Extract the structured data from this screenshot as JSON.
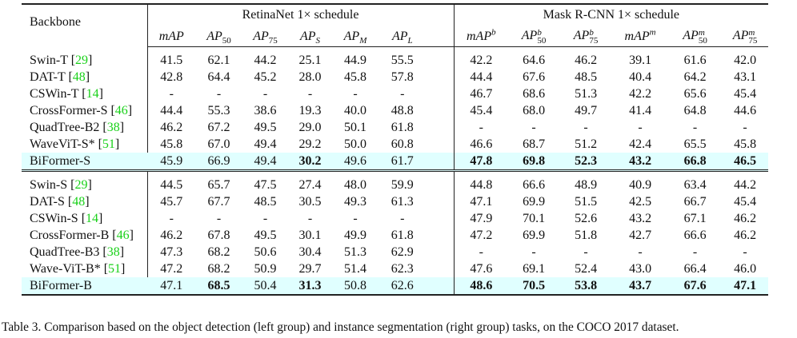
{
  "table": {
    "backbone_header": "Backbone",
    "groups": [
      "RetinaNet 1× schedule",
      "Mask R-CNN 1× schedule"
    ],
    "columns": [
      {
        "base": "mAP",
        "sub": "",
        "sup": ""
      },
      {
        "base": "AP",
        "sub": "50",
        "sup": ""
      },
      {
        "base": "AP",
        "sub": "75",
        "sup": ""
      },
      {
        "base": "AP",
        "sub": "S",
        "sup": ""
      },
      {
        "base": "AP",
        "sub": "M",
        "sup": ""
      },
      {
        "base": "AP",
        "sub": "L",
        "sup": ""
      },
      {
        "base": "mAP",
        "sub": "",
        "sup": "b"
      },
      {
        "base": "AP",
        "sub": "50",
        "sup": "b"
      },
      {
        "base": "AP",
        "sub": "75",
        "sup": "b"
      },
      {
        "base": "mAP",
        "sub": "",
        "sup": "m"
      },
      {
        "base": "AP",
        "sub": "50",
        "sup": "m"
      },
      {
        "base": "AP",
        "sub": "75",
        "sup": "m"
      }
    ],
    "blocks": [
      [
        {
          "name": "Swin-T",
          "cite": "29",
          "values": [
            "41.5",
            "62.1",
            "44.2",
            "25.1",
            "44.9",
            "55.5",
            "42.2",
            "64.6",
            "46.2",
            "39.1",
            "61.6",
            "42.0"
          ],
          "bold": []
        },
        {
          "name": "DAT-T",
          "cite": "48",
          "values": [
            "42.8",
            "64.4",
            "45.2",
            "28.0",
            "45.8",
            "57.8",
            "44.4",
            "67.6",
            "48.5",
            "40.4",
            "64.2",
            "43.1"
          ],
          "bold": []
        },
        {
          "name": "CSWin-T",
          "cite": "14",
          "values": [
            "-",
            "-",
            "-",
            "-",
            "-",
            "-",
            "46.7",
            "68.6",
            "51.3",
            "42.2",
            "65.6",
            "45.4"
          ],
          "bold": []
        },
        {
          "name": "CrossFormer-S",
          "cite": "46",
          "values": [
            "44.4",
            "55.3",
            "38.6",
            "19.3",
            "40.0",
            "48.8",
            "45.4",
            "68.0",
            "49.7",
            "41.4",
            "64.8",
            "44.6"
          ],
          "bold": []
        },
        {
          "name": "QuadTree-B2",
          "cite": "38",
          "values": [
            "46.2",
            "67.2",
            "49.5",
            "29.0",
            "50.1",
            "61.8",
            "-",
            "-",
            "-",
            "-",
            "-",
            "-"
          ],
          "bold": []
        },
        {
          "name": "WaveViT-S*",
          "cite": "51",
          "values": [
            "45.8",
            "67.0",
            "49.4",
            "29.2",
            "50.0",
            "60.8",
            "46.6",
            "68.7",
            "51.2",
            "42.4",
            "65.5",
            "45.8"
          ],
          "bold": []
        },
        {
          "name": "BiFormer-S",
          "cite": "",
          "highlight": true,
          "values": [
            "45.9",
            "66.9",
            "49.4",
            "30.2",
            "49.6",
            "61.7",
            "47.8",
            "69.8",
            "52.3",
            "43.2",
            "66.8",
            "46.5"
          ],
          "bold": [
            3,
            6,
            7,
            8,
            9,
            10,
            11
          ]
        }
      ],
      [
        {
          "name": "Swin-S",
          "cite": "29",
          "values": [
            "44.5",
            "65.7",
            "47.5",
            "27.4",
            "48.0",
            "59.9",
            "44.8",
            "66.6",
            "48.9",
            "40.9",
            "63.4",
            "44.2"
          ],
          "bold": []
        },
        {
          "name": "DAT-S",
          "cite": "48",
          "values": [
            "45.7",
            "67.7",
            "48.5",
            "30.5",
            "49.3",
            "61.3",
            "47.1",
            "69.9",
            "51.5",
            "42.5",
            "66.7",
            "45.4"
          ],
          "bold": []
        },
        {
          "name": "CSWin-S",
          "cite": "14",
          "values": [
            "-",
            "-",
            "-",
            "-",
            "-",
            "-",
            "47.9",
            "70.1",
            "52.6",
            "43.2",
            "67.1",
            "46.2"
          ],
          "bold": []
        },
        {
          "name": "CrossFormer-B",
          "cite": "46",
          "values": [
            "46.2",
            "67.8",
            "49.5",
            "30.1",
            "49.9",
            "61.8",
            "47.2",
            "69.9",
            "51.8",
            "42.7",
            "66.6",
            "46.2"
          ],
          "bold": []
        },
        {
          "name": "QuadTree-B3",
          "cite": "38",
          "values": [
            "47.3",
            "68.2",
            "50.6",
            "30.4",
            "51.3",
            "62.9",
            "-",
            "-",
            "-",
            "-",
            "-",
            "-"
          ],
          "bold": []
        },
        {
          "name": "Wave-ViT-B*",
          "cite": "51",
          "values": [
            "47.2",
            "68.2",
            "50.9",
            "29.7",
            "51.4",
            "62.3",
            "47.6",
            "69.1",
            "52.4",
            "43.0",
            "66.4",
            "46.0"
          ],
          "bold": []
        },
        {
          "name": "BiFormer-B",
          "cite": "",
          "highlight": true,
          "values": [
            "47.1",
            "68.5",
            "50.4",
            "31.3",
            "50.8",
            "62.6",
            "48.6",
            "70.5",
            "53.8",
            "43.7",
            "67.6",
            "47.1"
          ],
          "bold": [
            1,
            3,
            6,
            7,
            8,
            9,
            10,
            11
          ]
        }
      ]
    ]
  },
  "caption": "Table 3. Comparison based on the object detection (left group) and instance segmentation (right group) tasks, on the COCO 2017 dataset.",
  "colors": {
    "highlight": "#e0ffff",
    "cite": "#19d119"
  }
}
